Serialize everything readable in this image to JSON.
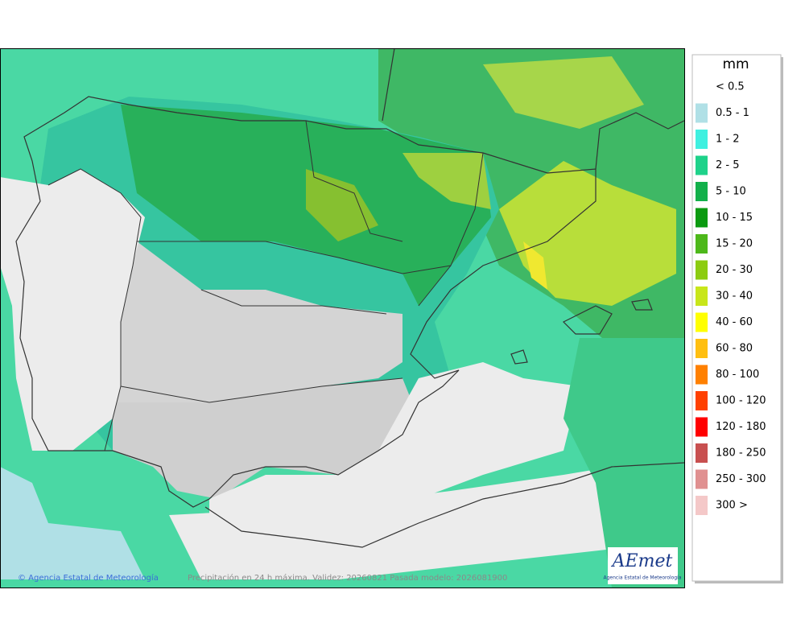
{
  "legend": {
    "title": "mm",
    "items": [
      {
        "label": "< 0.5"
      },
      {
        "label": "0.5 - 1",
        "color": "#b0e0e6"
      },
      {
        "label": "1 - 2",
        "color": "#3ff0e0"
      },
      {
        "label": "2 - 5",
        "color": "#1ed28a"
      },
      {
        "label": "5 - 10",
        "color": "#12b04a"
      },
      {
        "label": "10 - 15",
        "color": "#0a9a10"
      },
      {
        "label": "15 - 20",
        "color": "#4db81a"
      },
      {
        "label": "20 - 30",
        "color": "#8ccc10"
      },
      {
        "label": "30 - 40",
        "color": "#c8e61a"
      },
      {
        "label": "40 - 60",
        "color": "#ffff00"
      },
      {
        "label": "60 - 80",
        "color": "#ffbf10"
      },
      {
        "label": "80 - 100",
        "color": "#ff8000"
      },
      {
        "label": "100 - 120",
        "color": "#ff4000"
      },
      {
        "label": "120 - 180",
        "color": "#ff0000"
      },
      {
        "label": "180 - 250",
        "color": "#c85050"
      },
      {
        "label": "250 - 300",
        "color": "#e09090"
      },
      {
        "label": "300 >",
        "color": "#f4c8c8"
      }
    ]
  },
  "footer": {
    "credit": "© Agencia Estatal de Meteorología",
    "caption": "Precipitación en 24 h máxima. Validez: 20260821 Pasada modelo: 2026081900"
  },
  "logo": {
    "name": "AEmet",
    "subtitle": "Agencia Estatal de Meteorología"
  }
}
